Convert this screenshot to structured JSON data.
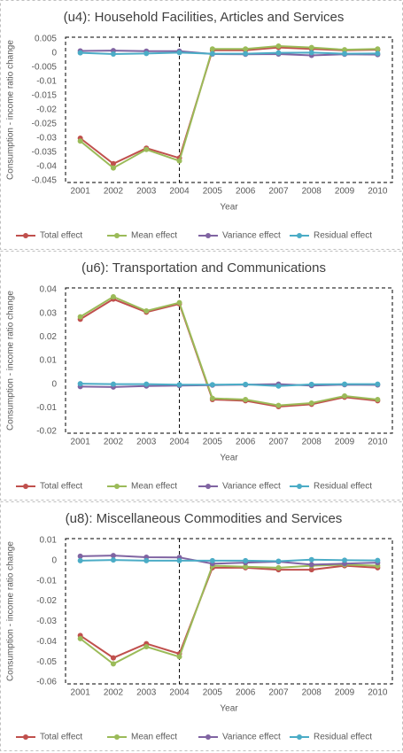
{
  "chart_data": [
    {
      "type": "line",
      "title": "(u4): Household Facilities, Articles and Services",
      "x_label": "Year",
      "y_label": "Consumption - income ratio change",
      "categories": [
        "2001",
        "2002",
        "2003",
        "2004",
        "2005",
        "2006",
        "2007",
        "2008",
        "2009",
        "2010"
      ],
      "ylim": [
        -0.045,
        0.005
      ],
      "yticks": [
        0.005,
        0,
        -0.005,
        -0.01,
        -0.015,
        -0.02,
        -0.025,
        -0.03,
        -0.035,
        -0.04,
        -0.045
      ],
      "grid": false,
      "legend": "bottom",
      "series": [
        {
          "name": "Total effect",
          "color": "#c0504d",
          "values": [
            -0.03,
            -0.039,
            -0.0335,
            -0.037,
            0.001,
            0.001,
            0.002,
            0.0015,
            0.001,
            0.0012
          ]
        },
        {
          "name": "Mean effect",
          "color": "#9bbb59",
          "values": [
            -0.031,
            -0.0405,
            -0.034,
            -0.038,
            0.0015,
            0.0015,
            0.0025,
            0.002,
            0.0012,
            0.0015
          ]
        },
        {
          "name": "Variance effect",
          "color": "#8064a2",
          "values": [
            0.0008,
            0.0009,
            0.0007,
            0.0007,
            -0.0003,
            -0.0004,
            -0.0003,
            -0.0008,
            -0.0004,
            -0.0005
          ]
        },
        {
          "name": "Residual effect",
          "color": "#4bacc6",
          "values": [
            0.0001,
            -0.0003,
            -0.0001,
            0.0002,
            -0.0002,
            -0.0002,
            0.0001,
            0.0002,
            -0.0002,
            -0.0001
          ]
        }
      ]
    },
    {
      "type": "line",
      "title": "(u6): Transportation  and Communications",
      "x_label": "Year",
      "y_label": "Consumption - income ratio change",
      "categories": [
        "2001",
        "2002",
        "2003",
        "2004",
        "2005",
        "2006",
        "2007",
        "2008",
        "2009",
        "2010"
      ],
      "ylim": [
        -0.02,
        0.04
      ],
      "yticks": [
        0.04,
        0.03,
        0.02,
        0.01,
        0,
        -0.01,
        -0.02
      ],
      "grid": false,
      "legend": "bottom",
      "series": [
        {
          "name": "Total effect",
          "color": "#c0504d",
          "values": [
            0.0275,
            0.036,
            0.0305,
            0.034,
            -0.0065,
            -0.007,
            -0.0095,
            -0.0085,
            -0.0055,
            -0.007
          ]
        },
        {
          "name": "Mean effect",
          "color": "#9bbb59",
          "values": [
            0.0285,
            0.037,
            0.031,
            0.0345,
            -0.006,
            -0.0065,
            -0.009,
            -0.008,
            -0.005,
            -0.0065
          ]
        },
        {
          "name": "Variance effect",
          "color": "#8064a2",
          "values": [
            -0.001,
            -0.0012,
            -0.0008,
            -0.0006,
            -0.0004,
            -0.0002,
            0,
            -0.0006,
            -0.0002,
            -0.0003
          ]
        },
        {
          "name": "Residual effect",
          "color": "#4bacc6",
          "values": [
            0.0002,
            0,
            0,
            -0.0002,
            -0.0002,
            -0.0001,
            -0.0008,
            -0.0001,
            0,
            0
          ]
        }
      ]
    },
    {
      "type": "line",
      "title": "(u8):  Miscellaneous Commodities and Services",
      "x_label": "Year",
      "y_label": "Consumption - income ratio change",
      "categories": [
        "2001",
        "2002",
        "2003",
        "2004",
        "2005",
        "2006",
        "2007",
        "2008",
        "2009",
        "2010"
      ],
      "ylim": [
        -0.06,
        0.01
      ],
      "yticks": [
        0.01,
        0,
        -0.01,
        -0.02,
        -0.03,
        -0.04,
        -0.05,
        -0.06
      ],
      "grid": false,
      "legend": "bottom",
      "series": [
        {
          "name": "Total effect",
          "color": "#c0504d",
          "values": [
            -0.037,
            -0.048,
            -0.041,
            -0.046,
            -0.0035,
            -0.0035,
            -0.0045,
            -0.0045,
            -0.0025,
            -0.0035
          ]
        },
        {
          "name": "Mean effect",
          "color": "#9bbb59",
          "values": [
            -0.0385,
            -0.051,
            -0.0425,
            -0.0475,
            -0.0025,
            -0.003,
            -0.0035,
            -0.0025,
            -0.002,
            -0.0025
          ]
        },
        {
          "name": "Variance effect",
          "color": "#8064a2",
          "values": [
            0.0022,
            0.0025,
            0.0017,
            0.0016,
            -0.0015,
            -0.001,
            -0.0005,
            -0.002,
            -0.0015,
            -0.001
          ]
        },
        {
          "name": "Residual effect",
          "color": "#4bacc6",
          "values": [
            0,
            0.0003,
            0,
            0,
            0,
            0,
            -0.0003,
            0.0005,
            0.0002,
            0.0001
          ]
        }
      ]
    }
  ]
}
